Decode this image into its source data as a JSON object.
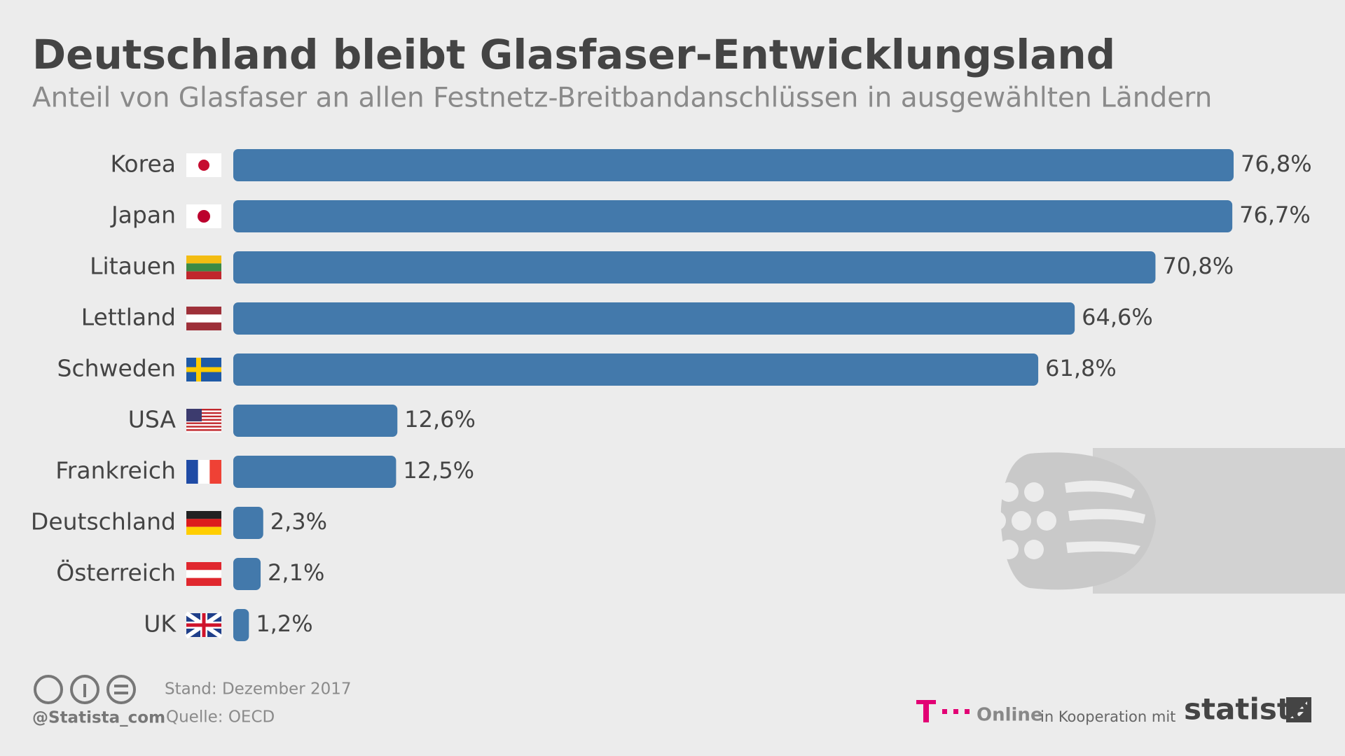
{
  "chart_data": {
    "type": "bar",
    "orientation": "horizontal",
    "title": "Deutschland bleibt Glasfaser-Entwicklungsland",
    "subtitle": "Anteil von Glasfaser an allen Festnetz-Breitbandanschlüssen in ausgewählten Ländern",
    "categories": [
      "Korea",
      "Japan",
      "Litauen",
      "Lettland",
      "Schweden",
      "USA",
      "Frankreich",
      "Deutschland",
      "Österreich",
      "UK"
    ],
    "values": [
      76.8,
      76.7,
      70.8,
      64.6,
      61.8,
      12.6,
      12.5,
      2.3,
      2.1,
      1.2
    ],
    "value_labels": [
      "76,8%",
      "76,7%",
      "70,8%",
      "64,6%",
      "61,8%",
      "12,6%",
      "12,5%",
      "2,3%",
      "2,1%",
      "1,2%"
    ],
    "color": "#4379ab"
  },
  "footer": {
    "handle": "@Statista_com",
    "date": "Stand: Dezember 2017",
    "source": "Quelle: OECD",
    "partner": "Online",
    "cooperation": "in Kooperation mit",
    "brand": "statista"
  }
}
